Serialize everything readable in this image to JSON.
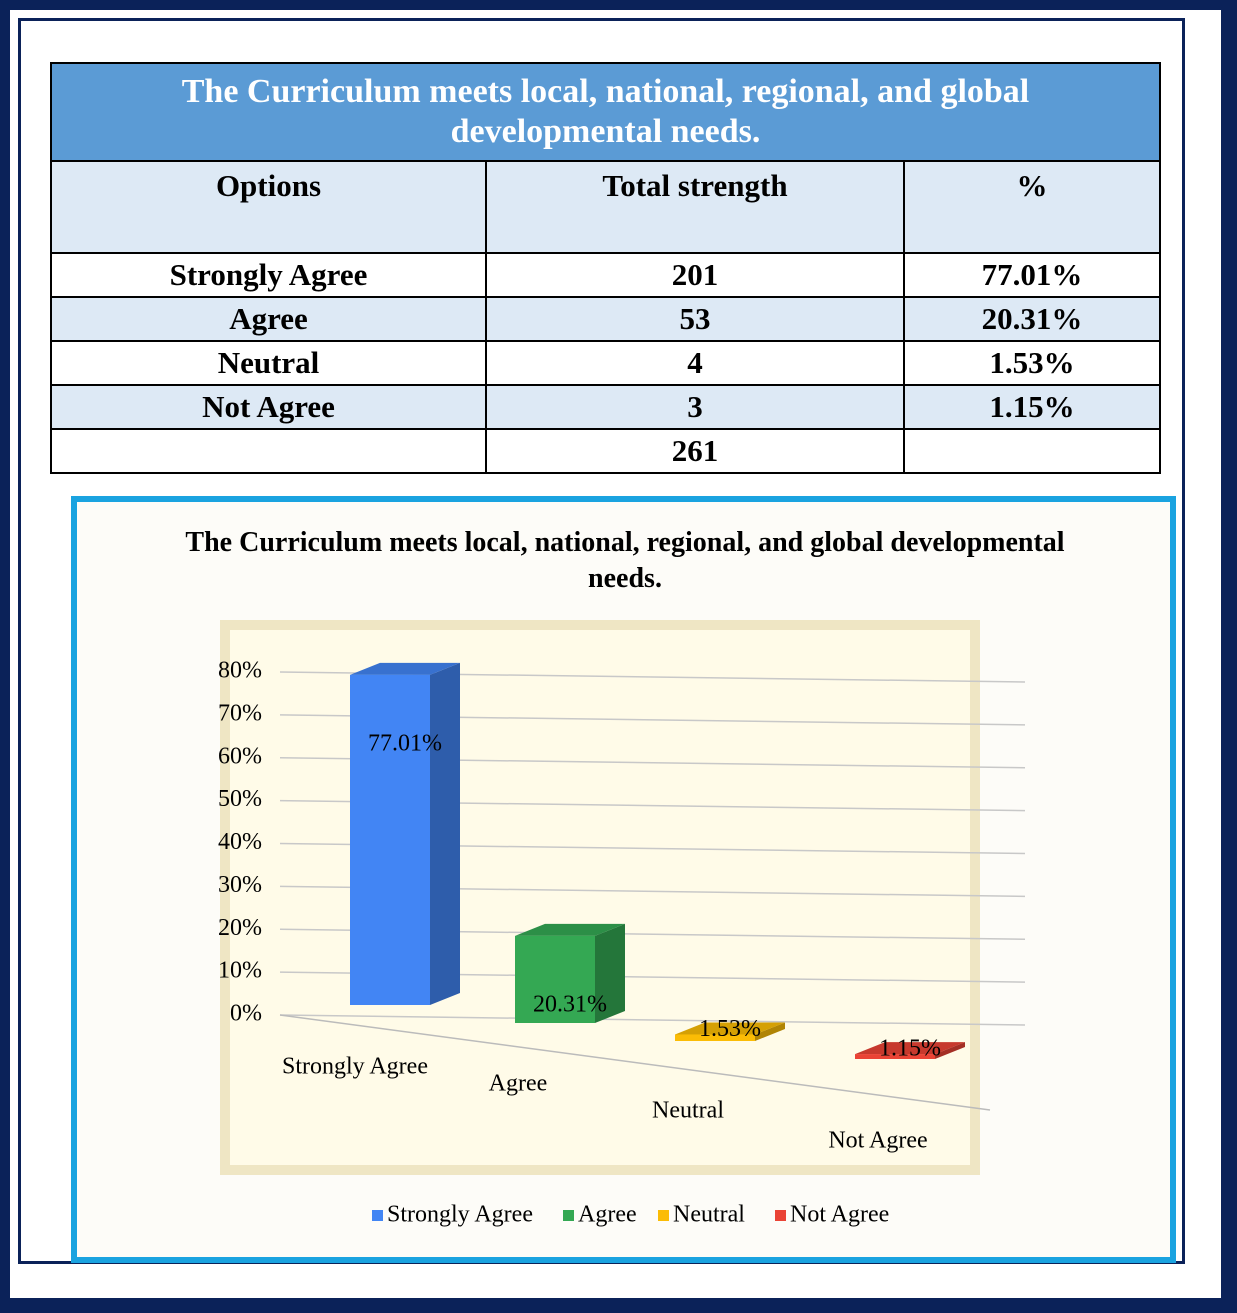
{
  "table": {
    "title": "The Curriculum meets local, national, regional, and global developmental needs.",
    "headers": [
      "Options",
      "Total strength",
      "%"
    ],
    "rows": [
      [
        "Strongly Agree",
        "201",
        "77.01%"
      ],
      [
        "Agree",
        "53",
        "20.31%"
      ],
      [
        "Neutral",
        "4",
        "1.53%"
      ],
      [
        "Not Agree",
        "3",
        "1.15%"
      ]
    ],
    "total": "261"
  },
  "chart_data": {
    "type": "bar3d",
    "title": "The Curriculum meets local, national, regional, and global developmental needs.",
    "categories": [
      "Strongly Agree",
      "Agree",
      "Neutral",
      "Not Agree"
    ],
    "values": [
      77.01,
      20.31,
      1.53,
      1.15
    ],
    "value_labels": [
      "77.01%",
      "20.31%",
      "1.53%",
      "1.15%"
    ],
    "colors": [
      "#4285f4",
      "#34a853",
      "#fbbc05",
      "#ea4335"
    ],
    "ylim": [
      0,
      80
    ],
    "yticks": [
      {
        "value": 0,
        "label": "0%"
      },
      {
        "value": 10,
        "label": "10%"
      },
      {
        "value": 20,
        "label": "20%"
      },
      {
        "value": 30,
        "label": "30%"
      },
      {
        "value": 40,
        "label": "40%"
      },
      {
        "value": 50,
        "label": "50%"
      },
      {
        "value": 60,
        "label": "60%"
      },
      {
        "value": 70,
        "label": "70%"
      },
      {
        "value": 80,
        "label": "80%"
      }
    ],
    "grid": true,
    "legend": "bottom"
  }
}
